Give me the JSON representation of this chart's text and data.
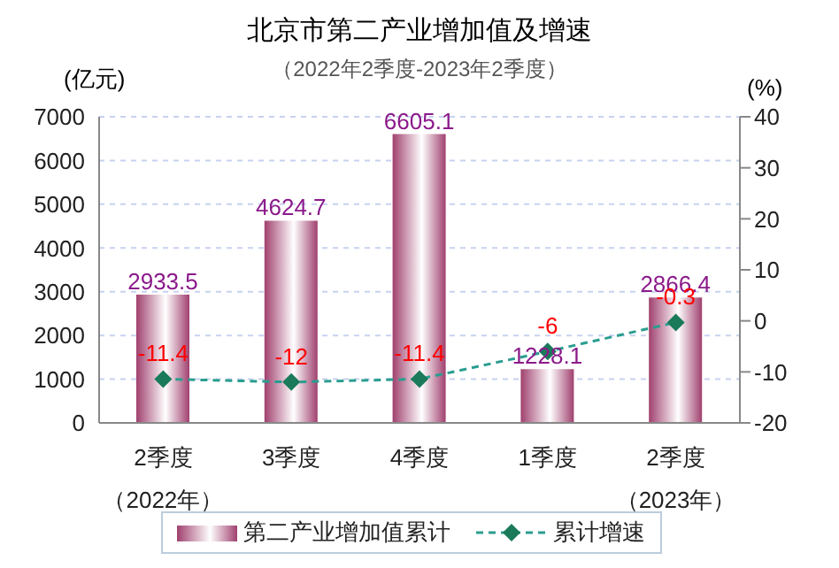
{
  "chart_data": {
    "type": "bar",
    "title": "北京市第二产业增加值及增速",
    "subtitle": "（2022年2季度-2023年2季度）",
    "ylabel": "(亿元)",
    "y2label": "(%)",
    "categories": [
      "2季度",
      "3季度",
      "4季度",
      "1季度",
      "2季度"
    ],
    "series": [
      {
        "name": "第二产业增加值累计",
        "color": "#a0406e",
        "values": [
          2933.5,
          4624.7,
          6605.1,
          1228.1,
          2866.4
        ]
      },
      {
        "name": "累计增速",
        "type": "line",
        "axis": "y2",
        "color": "#2a9d8f",
        "marker": "diamond",
        "line_style": "dashed",
        "values": [
          -11.4,
          -12,
          -11.4,
          -6,
          -0.3
        ]
      }
    ],
    "ylim": [
      0,
      7000
    ],
    "yticks": [
      0,
      1000,
      2000,
      3000,
      4000,
      5000,
      6000,
      7000
    ],
    "y2lim": [
      -20,
      40
    ],
    "y2ticks": [
      -20,
      -10,
      0,
      10,
      20,
      30,
      40
    ],
    "annotations": [
      "（2022年）",
      "（2023年）"
    ],
    "data_labels": true,
    "grid": "y",
    "legend": "bottom"
  }
}
